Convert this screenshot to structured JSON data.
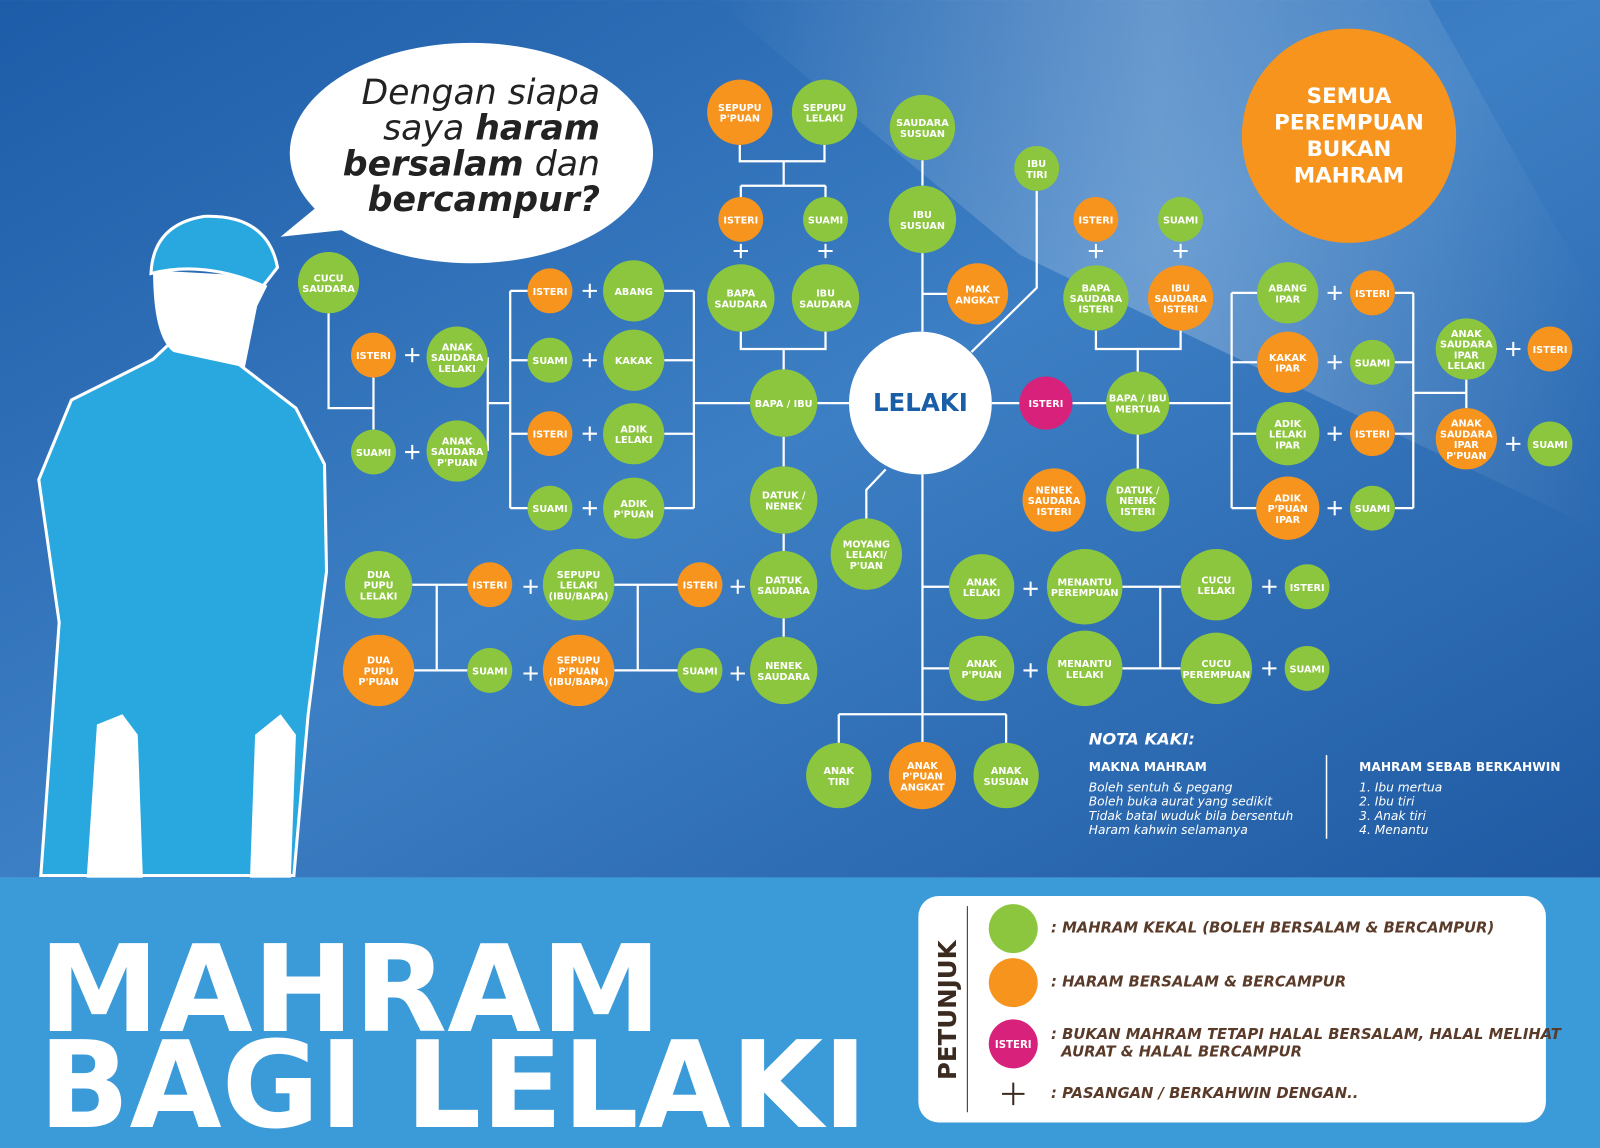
{
  "bubble": {
    "lines": [
      [
        {
          "text": "Dengan siapa",
          "bold": false
        }
      ],
      [
        {
          "text": "saya ",
          "bold": false
        },
        {
          "text": "haram",
          "bold": true
        }
      ],
      [
        {
          "text": "bersalam",
          "bold": true
        },
        {
          "text": " dan",
          "bold": false
        }
      ],
      [
        {
          "text": "bercampur?",
          "bold": true
        }
      ]
    ]
  },
  "nodes": [
    {
      "label": [
        "LELAKI"
      ],
      "color": "#ffffff"
    },
    {
      "label": [
        "SEPUPU",
        "P'PUAN"
      ],
      "color": "#f7941d"
    },
    {
      "label": [
        "SEPUPU",
        "LELAKI"
      ],
      "color": "#8cc63f"
    },
    {
      "label": [
        "ISTERI"
      ],
      "color": "#f7941d"
    },
    {
      "label": [
        "SUAMI"
      ],
      "color": "#8cc63f"
    },
    {
      "label": [
        "BAPA",
        "SAUDARA"
      ],
      "color": "#8cc63f"
    },
    {
      "label": [
        "IBU",
        "SAUDARA"
      ],
      "color": "#8cc63f"
    },
    {
      "label": [
        "SAUDARA",
        "SUSUAN"
      ],
      "color": "#8cc63f"
    },
    {
      "label": [
        "IBU",
        "SUSUAN"
      ],
      "color": "#8cc63f"
    },
    {
      "label": [
        "MAK",
        "ANGKAT"
      ],
      "color": "#f7941d"
    },
    {
      "label": [
        "IBU",
        "TIRI"
      ],
      "color": "#8cc63f"
    },
    {
      "label": [
        "CUCU",
        "SAUDARA"
      ],
      "color": "#8cc63f"
    },
    {
      "label": [
        "ISTERI"
      ],
      "color": "#f7941d"
    },
    {
      "label": [
        "ANAK",
        "SAUDARA",
        "LELAKI"
      ],
      "color": "#8cc63f"
    },
    {
      "label": [
        "SUAMI"
      ],
      "color": "#8cc63f"
    },
    {
      "label": [
        "ANAK",
        "SAUDARA",
        "P'PUAN"
      ],
      "color": "#8cc63f"
    },
    {
      "label": [
        "ISTERI"
      ],
      "color": "#f7941d"
    },
    {
      "label": [
        "ABANG"
      ],
      "color": "#8cc63f"
    },
    {
      "label": [
        "SUAMI"
      ],
      "color": "#8cc63f"
    },
    {
      "label": [
        "KAKAK"
      ],
      "color": "#8cc63f"
    },
    {
      "label": [
        "ISTERI"
      ],
      "color": "#f7941d"
    },
    {
      "label": [
        "ADIK",
        "LELAKI"
      ],
      "color": "#8cc63f"
    },
    {
      "label": [
        "SUAMI"
      ],
      "color": "#8cc63f"
    },
    {
      "label": [
        "ADIK",
        "P'PUAN"
      ],
      "color": "#8cc63f"
    },
    {
      "label": [
        "BAPA / IBU"
      ],
      "color": "#8cc63f"
    },
    {
      "label": [
        "DATUK /",
        "NENEK"
      ],
      "color": "#8cc63f"
    },
    {
      "label": [
        "MOYANG",
        "LELAKI/",
        "P'UAN"
      ],
      "color": "#8cc63f"
    },
    {
      "label": [
        "DATUK",
        "SAUDARA"
      ],
      "color": "#8cc63f"
    },
    {
      "label": [
        "NENEK",
        "SAUDARA"
      ],
      "color": "#8cc63f"
    },
    {
      "label": [
        "ISTERI"
      ],
      "color": "#f7941d"
    },
    {
      "label": [
        "SUAMI"
      ],
      "color": "#8cc63f"
    },
    {
      "label": [
        "SEPUPU",
        "LELAKI",
        "(IBU/BAPA)"
      ],
      "color": "#8cc63f"
    },
    {
      "label": [
        "SEPUPU",
        "P'PUAN",
        "(IBU/BAPA)"
      ],
      "color": "#f7941d"
    },
    {
      "label": [
        "ISTERI"
      ],
      "color": "#f7941d"
    },
    {
      "label": [
        "SUAMI"
      ],
      "color": "#8cc63f"
    },
    {
      "label": [
        "DUA",
        "PUPU",
        "LELAKI"
      ],
      "color": "#8cc63f"
    },
    {
      "label": [
        "DUA",
        "PUPU",
        "P'PUAN"
      ],
      "color": "#f7941d"
    },
    {
      "label": [
        "ISTERI"
      ],
      "color": "#d8217a"
    },
    {
      "label": [
        "BAPA / IBU",
        "MERTUA"
      ],
      "color": "#8cc63f"
    },
    {
      "label": [
        "DATUK /",
        "NENEK",
        "ISTERI"
      ],
      "color": "#8cc63f"
    },
    {
      "label": [
        "NENEK",
        "SAUDARA",
        "ISTERI"
      ],
      "color": "#f7941d"
    },
    {
      "label": [
        "ISTERI"
      ],
      "color": "#f7941d"
    },
    {
      "label": [
        "SUAMI"
      ],
      "color": "#8cc63f"
    },
    {
      "label": [
        "BAPA",
        "SAUDARA",
        "ISTERI"
      ],
      "color": "#8cc63f"
    },
    {
      "label": [
        "IBU",
        "SAUDARA",
        "ISTERI"
      ],
      "color": "#f7941d"
    },
    {
      "label": [
        "ABANG",
        "IPAR"
      ],
      "color": "#8cc63f"
    },
    {
      "label": [
        "ISTERI"
      ],
      "color": "#f7941d"
    },
    {
      "label": [
        "KAKAK",
        "IPAR"
      ],
      "color": "#f7941d"
    },
    {
      "label": [
        "SUAMI"
      ],
      "color": "#8cc63f"
    },
    {
      "label": [
        "ADIK",
        "LELAKI",
        "IPAR"
      ],
      "color": "#8cc63f"
    },
    {
      "label": [
        "ISTERI"
      ],
      "color": "#f7941d"
    },
    {
      "label": [
        "ADIK",
        "P'PUAN",
        "IPAR"
      ],
      "color": "#f7941d"
    },
    {
      "label": [
        "SUAMI"
      ],
      "color": "#8cc63f"
    },
    {
      "label": [
        "ANAK",
        "SAUDARA",
        "IPAR",
        "LELAKI"
      ],
      "color": "#8cc63f"
    },
    {
      "label": [
        "ISTERI"
      ],
      "color": "#f7941d"
    },
    {
      "label": [
        "ANAK",
        "SAUDARA",
        "IPAR",
        "P'PUAN"
      ],
      "color": "#f7941d"
    },
    {
      "label": [
        "SUAMI"
      ],
      "color": "#8cc63f"
    },
    {
      "label": [
        "ANAK",
        "LELAKI"
      ],
      "color": "#8cc63f"
    },
    {
      "label": [
        "MENANTU",
        "PEREMPUAN"
      ],
      "color": "#8cc63f"
    },
    {
      "label": [
        "ANAK",
        "P'PUAN"
      ],
      "color": "#8cc63f"
    },
    {
      "label": [
        "MENANTU",
        "LELAKI"
      ],
      "color": "#8cc63f"
    },
    {
      "label": [
        "CUCU",
        "LELAKI"
      ],
      "color": "#8cc63f"
    },
    {
      "label": [
        "ISTERI"
      ],
      "color": "#8cc63f"
    },
    {
      "label": [
        "CUCU",
        "PEREMPUAN"
      ],
      "color": "#8cc63f"
    },
    {
      "label": [
        "SUAMI"
      ],
      "color": "#8cc63f"
    },
    {
      "label": [
        "ANAK",
        "TIRI"
      ],
      "color": "#8cc63f"
    },
    {
      "label": [
        "ANAK",
        "P'PUAN",
        "ANGKAT"
      ],
      "color": "#f7941d"
    },
    {
      "label": [
        "ANAK",
        "SUSUAN"
      ],
      "color": "#8cc63f"
    },
    {
      "label": [
        "SEMUA",
        "PEREMPUAN",
        "BUKAN",
        "MAHRAM"
      ],
      "color": "#f7941d"
    }
  ],
  "notes": {
    "title": "NOTA KAKI:",
    "left": {
      "heading": "MAKNA MAHRAM",
      "lines": [
        "Boleh sentuh & pegang",
        "Boleh buka aurat yang sedikit",
        "Tidak batal wuduk bila bersentuh",
        "Haram kahwin selamanya"
      ]
    },
    "right": {
      "heading": "MAHRAM SEBAB BERKAHWIN",
      "lines": [
        "1. Ibu mertua",
        "2. Ibu tiri",
        "3. Anak tiri",
        "4. Menantu"
      ]
    }
  },
  "title": {
    "lines": [
      "MAHRAM",
      "BAGI LELAKI"
    ]
  },
  "legend": {
    "heading": "PETUNJUK",
    "items": [
      {
        "symbol": "circle",
        "color": "#8cc63f",
        "lines": [
          ": MAHRAM KEKAL (BOLEH BERSALAM & BERCAMPUR)"
        ]
      },
      {
        "symbol": "circle",
        "color": "#f7941d",
        "lines": [
          ": HARAM BERSALAM & BERCAMPUR"
        ]
      },
      {
        "symbol": "circle",
        "color": "#d8217a",
        "symbol_label": "ISTERI",
        "lines": [
          ": BUKAN MAHRAM TETAPI HALAL BERSALAM, HALAL MELIHAT",
          "  AURAT & HALAL BERCAMPUR"
        ]
      },
      {
        "symbol": "plus",
        "lines": [
          ": PASANGAN / BERKAHWIN DENGAN.."
        ]
      }
    ]
  }
}
